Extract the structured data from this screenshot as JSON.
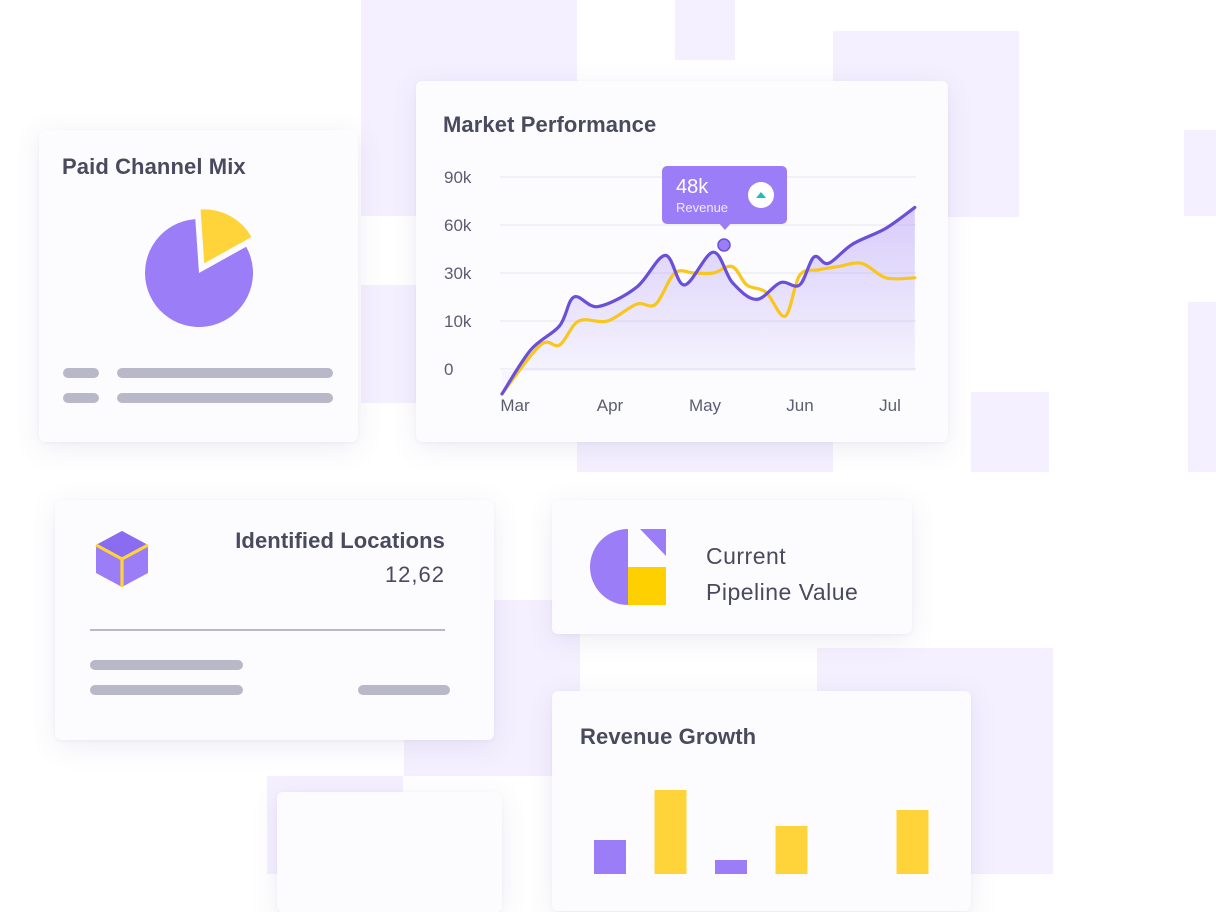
{
  "colors": {
    "purple": "#9b7df7",
    "purple_line": "#6a4fd9",
    "yellow": "#ffd43a",
    "yellow_line": "#f8c61d",
    "teal": "#17c3b2"
  },
  "paid_channel_mix": {
    "title": "Paid Channel Mix",
    "chart_data": {
      "type": "pie",
      "slices": [
        {
          "value": 82
        },
        {
          "value": 18
        }
      ]
    }
  },
  "market_performance": {
    "title": "Market Performance",
    "tooltip": {
      "value": "48k",
      "label": "Revenue",
      "icon": "triangle-up-icon"
    },
    "chart_data": {
      "type": "line",
      "title": "Market Performance",
      "y_ticks": [
        "90k",
        "60k",
        "30k",
        "10k",
        "0"
      ],
      "x_ticks": [
        "Mar",
        "Apr",
        "May",
        "Jun",
        "Jul"
      ],
      "series": [
        {
          "color": "#6a4fd9",
          "points": [
            [
              0,
              -3
            ],
            [
              0.3,
              4
            ],
            [
              0.6,
              9
            ],
            [
              0.75,
              20
            ],
            [
              1.0,
              16
            ],
            [
              1.4,
              24
            ],
            [
              1.7,
              41
            ],
            [
              1.9,
              25
            ],
            [
              2.2,
              43
            ],
            [
              2.4,
              26
            ],
            [
              2.65,
              19
            ],
            [
              2.9,
              26
            ],
            [
              3.1,
              25
            ],
            [
              3.25,
              40
            ],
            [
              3.4,
              36
            ],
            [
              3.65,
              48
            ],
            [
              4.0,
              58
            ],
            [
              4.3,
              71
            ]
          ]
        },
        {
          "color": "#f8c61d",
          "points": [
            [
              0,
              -3
            ],
            [
              0.4,
              5
            ],
            [
              0.6,
              5
            ],
            [
              0.8,
              10
            ],
            [
              1.1,
              10
            ],
            [
              1.4,
              17
            ],
            [
              1.6,
              17
            ],
            [
              1.8,
              30
            ],
            [
              2.0,
              30
            ],
            [
              2.2,
              30
            ],
            [
              2.4,
              34
            ],
            [
              2.55,
              25
            ],
            [
              2.75,
              22
            ],
            [
              2.95,
              12
            ],
            [
              3.1,
              29
            ],
            [
              3.3,
              32
            ],
            [
              3.5,
              34
            ],
            [
              3.75,
              36
            ],
            [
              4.0,
              28
            ],
            [
              4.3,
              28
            ]
          ]
        }
      ]
    }
  },
  "identified_locations": {
    "title": "Identified Locations",
    "value": "12,62",
    "icon": "cube-icon"
  },
  "pipeline": {
    "title_line1": "Current",
    "title_line2": "Pipeline Value",
    "icon": "pipeline-chart-icon"
  },
  "revenue_growth": {
    "title": "Revenue Growth",
    "chart_data": {
      "type": "bar",
      "title": "Revenue Growth",
      "series": [
        {
          "color": "#9b7df7",
          "values": [
            34,
            null,
            14,
            null,
            null,
            null
          ]
        },
        {
          "color": "#ffd43a",
          "values": [
            null,
            84,
            null,
            48,
            null,
            64
          ]
        }
      ]
    }
  }
}
